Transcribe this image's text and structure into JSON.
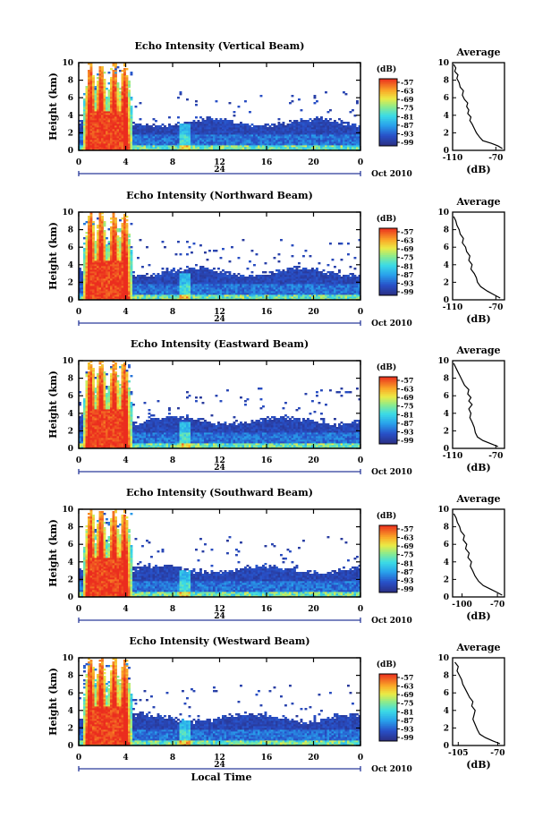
{
  "chart_data": [
    {
      "type": "heatmap",
      "title": "Echo Intensity (Vertical Beam)",
      "ylabel": "Height (km)",
      "ylim": [
        0,
        10
      ],
      "yticks": [
        "0",
        "2",
        "4",
        "6",
        "8",
        "10"
      ],
      "xlim": [
        0,
        24
      ],
      "xticks": [
        "0",
        "4",
        "8",
        "12",
        "16",
        "20",
        "0"
      ],
      "date_marker": "24",
      "date_label": "Oct 2010",
      "colorbar": {
        "unit": "(dB)",
        "ticks": [
          "-57",
          "-63",
          "-69",
          "-75",
          "-81",
          "-87",
          "-93",
          "-99"
        ]
      },
      "average": {
        "title": "Average",
        "xlabel": "(dB)",
        "xticks": [
          "-110",
          "-70"
        ],
        "xlim": [
          -110,
          -62
        ],
        "ylim": [
          0,
          10
        ],
        "yticks": [
          "0",
          "2",
          "4",
          "6",
          "8",
          "10"
        ],
        "profile": [
          [
            -64,
            0.2
          ],
          [
            -68,
            0.5
          ],
          [
            -74,
            0.8
          ],
          [
            -82,
            1.1
          ],
          [
            -85,
            1.5
          ],
          [
            -88,
            2.0
          ],
          [
            -90,
            2.5
          ],
          [
            -92,
            3.0
          ],
          [
            -94,
            3.4
          ],
          [
            -93,
            3.8
          ],
          [
            -96,
            4.2
          ],
          [
            -95,
            4.6
          ],
          [
            -97,
            5.0
          ],
          [
            -96,
            5.4
          ],
          [
            -99,
            5.8
          ],
          [
            -101,
            6.3
          ],
          [
            -100,
            6.8
          ],
          [
            -103,
            7.2
          ],
          [
            -104,
            7.7
          ],
          [
            -106,
            8.2
          ],
          [
            -105,
            8.6
          ],
          [
            -108,
            9.0
          ],
          [
            -107,
            9.4
          ],
          [
            -109,
            9.8
          ]
        ]
      }
    },
    {
      "type": "heatmap",
      "title": "Echo Intensity (Northward Beam)",
      "ylabel": "Height (km)",
      "ylim": [
        0,
        10
      ],
      "yticks": [
        "0",
        "2",
        "4",
        "6",
        "8",
        "10"
      ],
      "xlim": [
        0,
        24
      ],
      "xticks": [
        "0",
        "4",
        "8",
        "12",
        "16",
        "20",
        "0"
      ],
      "date_marker": "24",
      "date_label": "Oct 2010",
      "colorbar": {
        "unit": "(dB)",
        "ticks": [
          "-57",
          "-63",
          "-69",
          "-75",
          "-81",
          "-87",
          "-93",
          "-99"
        ]
      },
      "average": {
        "title": "Average",
        "xlabel": "(dB)",
        "xticks": [
          "-110",
          "-70"
        ],
        "xlim": [
          -110,
          -62
        ],
        "ylim": [
          0,
          10
        ],
        "yticks": [
          "0",
          "2",
          "4",
          "6",
          "8",
          "10"
        ],
        "profile": [
          [
            -66,
            0.2
          ],
          [
            -72,
            0.6
          ],
          [
            -78,
            1.0
          ],
          [
            -84,
            1.5
          ],
          [
            -87,
            2.0
          ],
          [
            -88,
            2.5
          ],
          [
            -90,
            3.0
          ],
          [
            -93,
            3.5
          ],
          [
            -92,
            4.0
          ],
          [
            -95,
            4.5
          ],
          [
            -94,
            5.0
          ],
          [
            -97,
            5.5
          ],
          [
            -98,
            6.0
          ],
          [
            -101,
            6.5
          ],
          [
            -100,
            7.0
          ],
          [
            -103,
            7.5
          ],
          [
            -104,
            8.0
          ],
          [
            -106,
            8.5
          ],
          [
            -107,
            9.0
          ],
          [
            -109,
            9.5
          ]
        ]
      }
    },
    {
      "type": "heatmap",
      "title": "Echo Intensity (Eastward Beam)",
      "ylabel": "Height (km)",
      "ylim": [
        0,
        10
      ],
      "yticks": [
        "0",
        "2",
        "4",
        "6",
        "8",
        "10"
      ],
      "xlim": [
        0,
        24
      ],
      "xticks": [
        "0",
        "4",
        "8",
        "12",
        "16",
        "20",
        "0"
      ],
      "date_marker": "24",
      "date_label": "Oct 2010",
      "colorbar": {
        "unit": "(dB)",
        "ticks": [
          "-57",
          "-63",
          "-69",
          "-75",
          "-81",
          "-87",
          "-93",
          "-99"
        ]
      },
      "average": {
        "title": "Average",
        "xlabel": "(dB)",
        "xticks": [
          "-110",
          "-70"
        ],
        "xlim": [
          -110,
          -62
        ],
        "ylim": [
          0,
          10
        ],
        "yticks": [
          "0",
          "2",
          "4",
          "6",
          "8",
          "10"
        ],
        "profile": [
          [
            -68,
            0.2
          ],
          [
            -74,
            0.5
          ],
          [
            -82,
            0.9
          ],
          [
            -87,
            1.3
          ],
          [
            -89,
            1.8
          ],
          [
            -90,
            2.4
          ],
          [
            -92,
            3.0
          ],
          [
            -94,
            3.5
          ],
          [
            -93,
            4.0
          ],
          [
            -95,
            4.5
          ],
          [
            -92,
            5.0
          ],
          [
            -95,
            5.4
          ],
          [
            -93,
            5.8
          ],
          [
            -96,
            6.2
          ],
          [
            -95,
            6.7
          ],
          [
            -99,
            7.2
          ],
          [
            -101,
            7.7
          ],
          [
            -103,
            8.2
          ],
          [
            -105,
            8.7
          ],
          [
            -107,
            9.2
          ],
          [
            -109,
            9.7
          ]
        ]
      }
    },
    {
      "type": "heatmap",
      "title": "Echo Intensity (Southward Beam)",
      "ylabel": "Height (km)",
      "ylim": [
        0,
        10
      ],
      "yticks": [
        "0",
        "2",
        "4",
        "6",
        "8",
        "10"
      ],
      "xlim": [
        0,
        24
      ],
      "xticks": [
        "0",
        "4",
        "8",
        "12",
        "16",
        "20",
        "0"
      ],
      "date_marker": "24",
      "date_label": "Oct 2010",
      "colorbar": {
        "unit": "(dB)",
        "ticks": [
          "-57",
          "-63",
          "-69",
          "-75",
          "-81",
          "-87",
          "-93",
          "-99"
        ]
      },
      "average": {
        "title": "Average",
        "xlabel": "(dB)",
        "xticks": [
          "-100",
          "-70"
        ],
        "xlim": [
          -108,
          -64
        ],
        "ylim": [
          0,
          10
        ],
        "yticks": [
          "0",
          "2",
          "4",
          "6",
          "8",
          "10"
        ],
        "profile": [
          [
            -66,
            0.2
          ],
          [
            -70,
            0.5
          ],
          [
            -76,
            0.9
          ],
          [
            -82,
            1.3
          ],
          [
            -86,
            1.8
          ],
          [
            -89,
            2.4
          ],
          [
            -91,
            3.0
          ],
          [
            -93,
            3.5
          ],
          [
            -92,
            4.0
          ],
          [
            -95,
            4.5
          ],
          [
            -94,
            5.0
          ],
          [
            -97,
            5.5
          ],
          [
            -96,
            6.0
          ],
          [
            -99,
            6.5
          ],
          [
            -98,
            7.0
          ],
          [
            -101,
            7.5
          ],
          [
            -102,
            8.0
          ],
          [
            -104,
            8.5
          ],
          [
            -105,
            9.0
          ],
          [
            -107,
            9.5
          ]
        ]
      }
    },
    {
      "type": "heatmap",
      "title": "Echo Intensity (Westward Beam)",
      "ylabel": "Height (km)",
      "ylim": [
        0,
        10
      ],
      "yticks": [
        "0",
        "2",
        "4",
        "6",
        "8",
        "10"
      ],
      "xlim": [
        0,
        24
      ],
      "xticks": [
        "0",
        "4",
        "8",
        "12",
        "16",
        "20",
        "0"
      ],
      "date_marker": "24",
      "date_label": "Oct 2010",
      "xlabel": "Local Time",
      "colorbar": {
        "unit": "(dB)",
        "ticks": [
          "-57",
          "-63",
          "-69",
          "-75",
          "-81",
          "-87",
          "-93",
          "-99"
        ]
      },
      "average": {
        "title": "Average",
        "xlabel": "(dB)",
        "xticks": [
          "-105",
          "-70"
        ],
        "xlim": [
          -110,
          -64
        ],
        "ylim": [
          0,
          10
        ],
        "yticks": [
          "0",
          "2",
          "4",
          "6",
          "8",
          "10"
        ],
        "profile": [
          [
            -68,
            0.2
          ],
          [
            -74,
            0.5
          ],
          [
            -81,
            0.9
          ],
          [
            -86,
            1.3
          ],
          [
            -88,
            1.8
          ],
          [
            -90,
            2.4
          ],
          [
            -92,
            3.0
          ],
          [
            -91,
            3.5
          ],
          [
            -90,
            4.0
          ],
          [
            -93,
            4.5
          ],
          [
            -92,
            5.0
          ],
          [
            -95,
            5.5
          ],
          [
            -97,
            6.0
          ],
          [
            -99,
            6.5
          ],
          [
            -101,
            7.0
          ],
          [
            -102,
            7.5
          ],
          [
            -104,
            8.0
          ],
          [
            -106,
            8.5
          ],
          [
            -105,
            9.0
          ],
          [
            -108,
            9.5
          ]
        ]
      }
    }
  ]
}
